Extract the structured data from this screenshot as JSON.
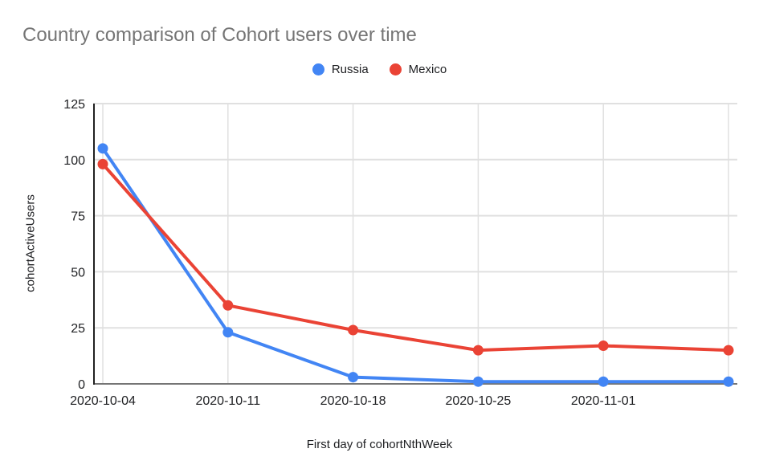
{
  "chart_data": {
    "type": "line",
    "title": "Country comparison of Cohort users over time",
    "xlabel": "First day of cohortNthWeek",
    "ylabel": "cohortActiveUsers",
    "categories": [
      "2020-10-04",
      "2020-10-11",
      "2020-10-18",
      "2020-10-25",
      "2020-11-01",
      ""
    ],
    "series": [
      {
        "name": "Russia",
        "color": "#4285F4",
        "values": [
          105,
          23,
          3,
          1,
          1,
          1
        ]
      },
      {
        "name": "Mexico",
        "color": "#EA4335",
        "values": [
          98,
          35,
          24,
          15,
          17,
          15
        ]
      }
    ],
    "y_ticks": [
      0,
      25,
      50,
      75,
      100,
      125
    ],
    "ylim": [
      0,
      125
    ],
    "grid": true,
    "legend_position": "top",
    "title_color": "#757575",
    "tick_label_color": "#202124",
    "gridline_color": "#e0e0e0",
    "baseline_color": "#757575",
    "y_axis_line_color": "#212121"
  }
}
